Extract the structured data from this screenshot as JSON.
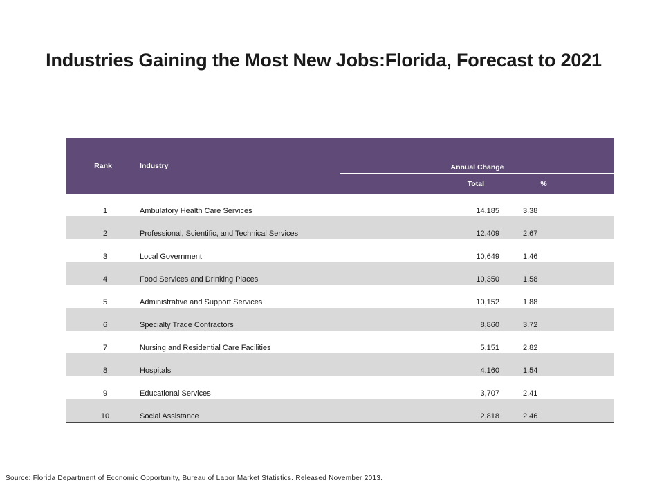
{
  "title": "Industries Gaining the Most New Jobs:Florida, Forecast to 2021",
  "table": {
    "headers": {
      "rank": "Rank",
      "industry": "Industry",
      "annual_change": "Annual Change",
      "total": "Total",
      "percent": "%"
    },
    "rows": [
      {
        "rank": "1",
        "industry": "Ambulatory Health Care Services",
        "total": "14,185",
        "pct": "3.38"
      },
      {
        "rank": "2",
        "industry": "Professional, Scientific, and Technical Services",
        "total": "12,409",
        "pct": "2.67"
      },
      {
        "rank": "3",
        "industry": "Local Government",
        "total": "10,649",
        "pct": "1.46"
      },
      {
        "rank": "4",
        "industry": "Food Services and Drinking Places",
        "total": "10,350",
        "pct": "1.58"
      },
      {
        "rank": "5",
        "industry": "Administrative and Support Services",
        "total": "10,152",
        "pct": "1.88"
      },
      {
        "rank": "6",
        "industry": "Specialty Trade Contractors",
        "total": "8,860",
        "pct": "3.72"
      },
      {
        "rank": "7",
        "industry": "Nursing and Residential Care Facilities",
        "total": "5,151",
        "pct": "2.82"
      },
      {
        "rank": "8",
        "industry": "Hospitals",
        "total": "4,160",
        "pct": "1.54"
      },
      {
        "rank": "9",
        "industry": "Educational Services",
        "total": "3,707",
        "pct": "2.41"
      },
      {
        "rank": "10",
        "industry": "Social Assistance",
        "total": "2,818",
        "pct": "2.46"
      }
    ]
  },
  "colors": {
    "header_bg": "#5f4a78",
    "stripe": "#d9d9d9"
  },
  "source": "Source: Florida Department of Economic Opportunity, Bureau of Labor Market Statistics.  Released November 2013."
}
